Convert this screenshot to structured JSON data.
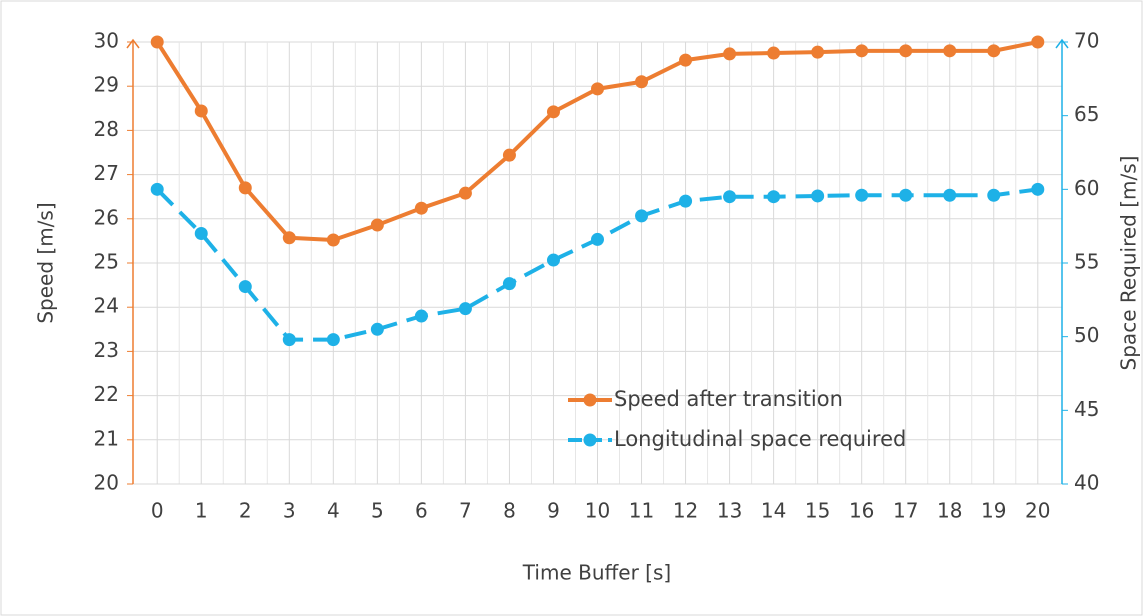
{
  "chart_data": {
    "type": "line",
    "x_label": "Time Buffer [s]",
    "y_label": "Speed [m/s]",
    "y2_label": "Space Required [m/s]",
    "x": [
      0,
      1,
      2,
      3,
      4,
      5,
      6,
      7,
      8,
      9,
      10,
      11,
      12,
      13,
      14,
      15,
      16,
      17,
      18,
      19,
      20
    ],
    "xlim": [
      -0.55,
      20.55
    ],
    "xticks": [
      0,
      1,
      2,
      3,
      4,
      5,
      6,
      7,
      8,
      9,
      10,
      11,
      12,
      13,
      14,
      15,
      16,
      17,
      18,
      19,
      20
    ],
    "ylim": [
      20,
      30
    ],
    "yticks": [
      20,
      21,
      22,
      23,
      24,
      25,
      26,
      27,
      28,
      29,
      30
    ],
    "y2lim": [
      40,
      70
    ],
    "y2ticks": [
      40,
      45,
      50,
      55,
      60,
      65,
      70
    ],
    "grid": true,
    "series": [
      {
        "name": "Speed after transition",
        "color": "#ed7d31",
        "dash": false,
        "values": [
          30,
          28.44,
          26.7,
          25.57,
          25.52,
          25.86,
          26.24,
          26.58,
          27.44,
          28.42,
          28.94,
          29.1,
          29.59,
          29.73,
          29.75,
          29.77,
          29.8,
          29.8,
          29.8,
          29.8,
          30
        ]
      },
      {
        "name": "Longitudinal space required",
        "color": "#1eb1e7",
        "dash": true,
        "axis": "y2",
        "values": [
          60,
          57,
          53.4,
          49.8,
          49.8,
          50.5,
          51.4,
          51.9,
          53.6,
          55.2,
          56.6,
          58.2,
          59.2,
          59.5,
          59.5,
          59.55,
          59.6,
          59.6,
          59.6,
          59.6,
          60
        ]
      }
    ]
  }
}
